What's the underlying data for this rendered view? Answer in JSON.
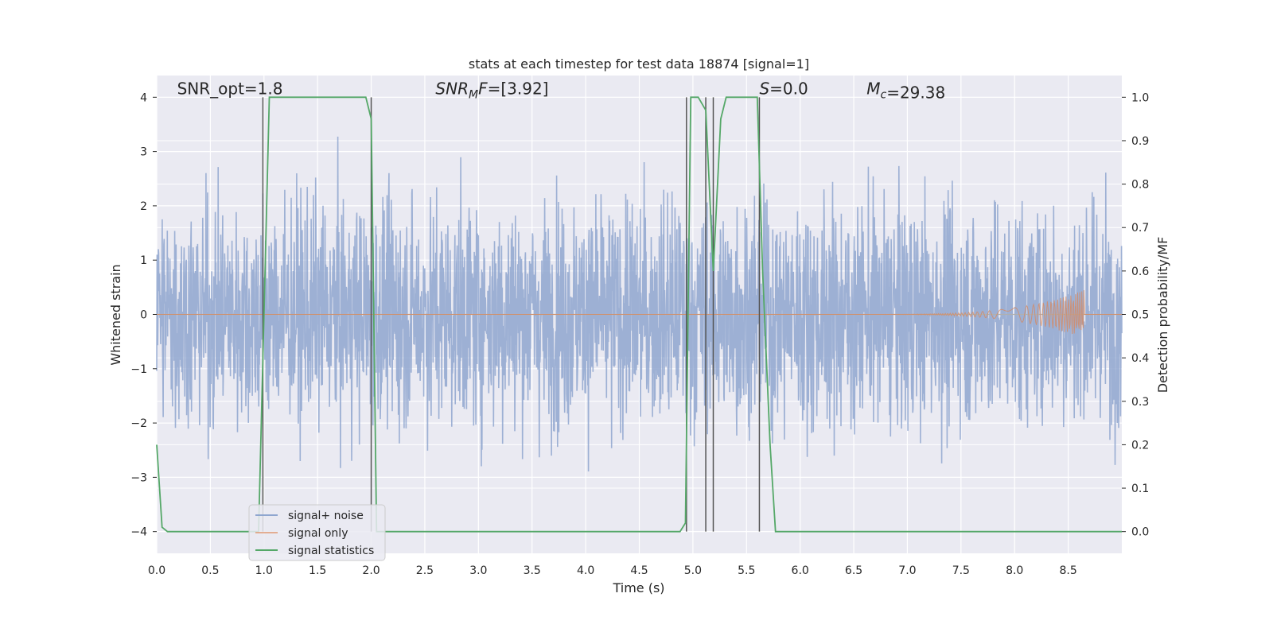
{
  "chart_data": {
    "type": "line",
    "title": "stats at each timestep for test data 18874 [signal=1]",
    "xlabel": "Time (s)",
    "ylabel": "Whitened strain",
    "y2label": "Detection probability/MF",
    "xlim": [
      0.0,
      9.0
    ],
    "ylim": [
      -4.4,
      4.4
    ],
    "y2lim": [
      -0.05,
      1.05
    ],
    "xticks": [
      0.0,
      0.5,
      1.0,
      1.5,
      2.0,
      2.5,
      3.0,
      3.5,
      4.0,
      4.5,
      5.0,
      5.5,
      6.0,
      6.5,
      7.0,
      7.5,
      8.0,
      8.5
    ],
    "xtick_labels": [
      "0.0",
      "0.5",
      "1.0",
      "1.5",
      "2.0",
      "2.5",
      "3.0",
      "3.5",
      "4.0",
      "4.5",
      "5.0",
      "5.5",
      "6.0",
      "6.5",
      "7.0",
      "7.5",
      "8.0",
      "8.5"
    ],
    "yticks": [
      -4,
      -3,
      -2,
      -1,
      0,
      1,
      2,
      3,
      4
    ],
    "ytick_labels": [
      "−4",
      "−3",
      "−2",
      "−1",
      "0",
      "1",
      "2",
      "3",
      "4"
    ],
    "y2ticks": [
      0.0,
      0.1,
      0.2,
      0.3,
      0.4,
      0.5,
      0.6,
      0.7,
      0.8,
      0.9,
      1.0
    ],
    "y2tick_labels": [
      "0.0",
      "0.1",
      "0.2",
      "0.3",
      "0.4",
      "0.5",
      "0.6",
      "0.7",
      "0.8",
      "0.9",
      "1.0"
    ],
    "grid": true,
    "legend_position": "lower-left",
    "annotations": [
      {
        "id": "snr-opt",
        "text": "SNR_opt=1.8",
        "x": 0.19,
        "y": 4.1
      },
      {
        "id": "snr-mf",
        "base": "SNR",
        "sub": "M",
        "rest": "F=[3.92]",
        "x": 2.6,
        "y": 4.1
      },
      {
        "id": "s-stat",
        "italic": "S",
        "rest": "=0.0",
        "x": 5.62,
        "y": 4.1
      },
      {
        "id": "chirp-mass",
        "base": "M",
        "sub": "c",
        "rest": "=29.38",
        "x": 6.62,
        "y": 4.1
      }
    ],
    "series": [
      {
        "name": "signal+ noise",
        "color": "#8fa6cf",
        "noise_amplitude": 1.6,
        "peak_range": [
          -3.7,
          3.45
        ]
      },
      {
        "name": "signal only",
        "color": "#dd8452",
        "chirp_start": 6.3,
        "chirp_end": 8.65,
        "chirp_peak": 0.45
      },
      {
        "name": "signal statistics",
        "color": "#55a868",
        "axis": "right",
        "x": [
          0.0,
          0.05,
          0.1,
          0.15,
          0.5,
          0.95,
          1.0,
          1.05,
          1.5,
          1.95,
          2.0,
          2.05,
          3.0,
          4.0,
          4.88,
          4.93,
          4.98,
          5.05,
          5.12,
          5.19,
          5.26,
          5.31,
          5.4,
          5.6,
          5.65,
          5.72,
          5.77,
          5.82,
          7.0,
          8.0,
          9.0
        ],
        "values": [
          0.2,
          0.01,
          0.0,
          0.0,
          0.0,
          0.0,
          0.5,
          1.0,
          1.0,
          1.0,
          0.95,
          0.0,
          0.0,
          0.0,
          0.0,
          0.02,
          1.0,
          1.0,
          0.97,
          0.6,
          0.95,
          1.0,
          1.0,
          1.0,
          0.6,
          0.2,
          0.0,
          0.0,
          0.0,
          0.0,
          0.0
        ]
      }
    ],
    "vertical_markers": [
      0.99,
      2.0,
      4.94,
      5.12,
      5.19,
      5.62
    ]
  }
}
